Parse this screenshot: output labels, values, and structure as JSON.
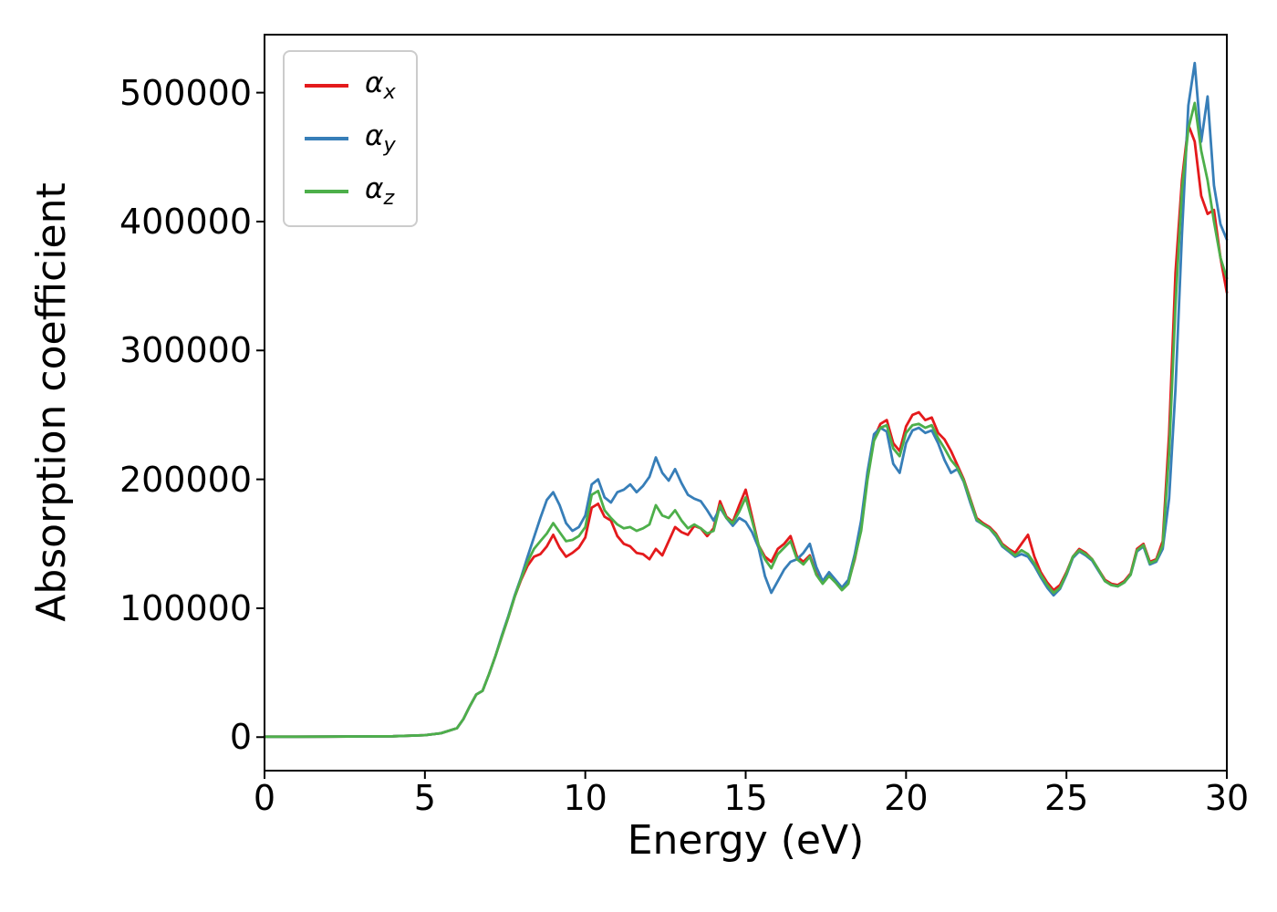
{
  "figure": {
    "xlabel": "Energy (eV)",
    "ylabel": "Absorption coefficient"
  },
  "chart_data": {
    "type": "line",
    "title": "",
    "xlabel": "Energy (eV)",
    "ylabel": "Absorption coefficient",
    "xlim": [
      0,
      30
    ],
    "ylim": [
      -26000,
      545000
    ],
    "xticks": [
      0,
      5,
      10,
      15,
      20,
      25,
      30
    ],
    "xticklabels": [
      "0",
      "5",
      "10",
      "15",
      "20",
      "25",
      "30"
    ],
    "yticks": [
      0,
      100000,
      200000,
      300000,
      400000,
      500000
    ],
    "yticklabels": [
      "0",
      "100000",
      "200000",
      "300000",
      "400000",
      "500000"
    ],
    "grid": false,
    "legend_position": "upper left",
    "x": [
      0,
      1,
      2,
      3,
      4,
      5,
      5.5,
      6,
      6.2,
      6.4,
      6.6,
      6.8,
      7,
      7.2,
      7.4,
      7.6,
      7.8,
      8,
      8.2,
      8.4,
      8.6,
      8.8,
      9,
      9.2,
      9.4,
      9.6,
      9.8,
      10,
      10.2,
      10.4,
      10.6,
      10.8,
      11,
      11.2,
      11.4,
      11.6,
      11.8,
      12,
      12.2,
      12.4,
      12.6,
      12.8,
      13,
      13.2,
      13.4,
      13.6,
      13.8,
      14,
      14.2,
      14.4,
      14.6,
      14.8,
      15,
      15.2,
      15.4,
      15.6,
      15.8,
      16,
      16.2,
      16.4,
      16.6,
      16.8,
      17,
      17.2,
      17.4,
      17.6,
      17.8,
      18,
      18.2,
      18.4,
      18.6,
      18.8,
      19,
      19.2,
      19.4,
      19.6,
      19.8,
      20,
      20.2,
      20.4,
      20.6,
      20.8,
      21,
      21.2,
      21.4,
      21.6,
      21.8,
      22,
      22.2,
      22.4,
      22.6,
      22.8,
      23,
      23.2,
      23.4,
      23.6,
      23.8,
      24,
      24.2,
      24.4,
      24.6,
      24.8,
      25,
      25.2,
      25.4,
      25.6,
      25.8,
      26,
      26.2,
      26.4,
      26.6,
      26.8,
      27,
      27.2,
      27.4,
      27.6,
      27.8,
      28,
      28.2,
      28.4,
      28.6,
      28.8,
      29,
      29.2,
      29.4,
      29.6,
      29.8,
      30
    ],
    "series": [
      {
        "name": "alpha_x",
        "label_base": "α",
        "label_sub": "x",
        "color": "#e41a1c",
        "values": [
          300,
          300,
          400,
          500,
          700,
          1500,
          3000,
          7000,
          14000,
          24000,
          33000,
          36000,
          49000,
          63000,
          78000,
          93000,
          109000,
          122000,
          133000,
          140000,
          142000,
          148000,
          157000,
          147000,
          140000,
          143000,
          147000,
          155000,
          178000,
          181000,
          171000,
          168000,
          156000,
          150000,
          148000,
          143000,
          142000,
          138000,
          146000,
          141000,
          152000,
          163000,
          159000,
          157000,
          164000,
          162000,
          156000,
          162000,
          183000,
          171000,
          167000,
          180000,
          192000,
          171000,
          149000,
          140000,
          136000,
          146000,
          150000,
          156000,
          140000,
          136000,
          141000,
          127000,
          120000,
          126000,
          121000,
          115000,
          120000,
          138000,
          162000,
          202000,
          232000,
          243000,
          246000,
          228000,
          222000,
          241000,
          250000,
          252000,
          246000,
          248000,
          236000,
          231000,
          222000,
          211000,
          200000,
          185000,
          170000,
          166000,
          163000,
          158000,
          150000,
          146000,
          143000,
          150000,
          157000,
          140000,
          128000,
          120000,
          114000,
          118000,
          128000,
          140000,
          146000,
          143000,
          138000,
          130000,
          122000,
          119000,
          118000,
          121000,
          127000,
          146000,
          150000,
          136000,
          138000,
          152000,
          235000,
          360000,
          432000,
          475000,
          462000,
          420000,
          406000,
          409000,
          372000,
          345000
        ]
      },
      {
        "name": "alpha_y",
        "label_base": "α",
        "label_sub": "y",
        "color": "#377eb8",
        "values": [
          300,
          300,
          400,
          500,
          700,
          1500,
          3000,
          7000,
          14000,
          24000,
          33000,
          36000,
          49000,
          63000,
          79000,
          94000,
          110000,
          124000,
          140000,
          155000,
          170000,
          184000,
          190000,
          180000,
          166000,
          160000,
          163000,
          172000,
          196000,
          200000,
          186000,
          182000,
          190000,
          192000,
          196000,
          190000,
          195000,
          202000,
          217000,
          205000,
          199000,
          208000,
          197000,
          188000,
          185000,
          183000,
          176000,
          168000,
          178000,
          170000,
          164000,
          170000,
          167000,
          159000,
          147000,
          125000,
          112000,
          121000,
          130000,
          136000,
          138000,
          143000,
          150000,
          132000,
          121000,
          128000,
          122000,
          116000,
          122000,
          142000,
          168000,
          206000,
          235000,
          240000,
          237000,
          212000,
          205000,
          228000,
          238000,
          240000,
          236000,
          238000,
          228000,
          215000,
          205000,
          208000,
          198000,
          182000,
          168000,
          165000,
          162000,
          156000,
          148000,
          144000,
          140000,
          142000,
          140000,
          133000,
          124000,
          116000,
          110000,
          115000,
          126000,
          139000,
          144000,
          141000,
          137000,
          129000,
          121000,
          118000,
          117000,
          120000,
          126000,
          144000,
          148000,
          134000,
          136000,
          146000,
          185000,
          270000,
          390000,
          490000,
          523000,
          462000,
          497000,
          428000,
          398000,
          386000
        ]
      },
      {
        "name": "alpha_z",
        "label_base": "α",
        "label_sub": "z",
        "color": "#4daf4a",
        "values": [
          300,
          300,
          400,
          500,
          700,
          1500,
          3000,
          7000,
          14000,
          24000,
          33000,
          36000,
          49000,
          63000,
          78000,
          93000,
          109000,
          123000,
          136000,
          146000,
          152000,
          158000,
          166000,
          159000,
          152000,
          153000,
          156000,
          163000,
          188000,
          191000,
          176000,
          170000,
          165000,
          162000,
          163000,
          160000,
          162000,
          165000,
          180000,
          172000,
          170000,
          176000,
          168000,
          162000,
          165000,
          162000,
          158000,
          160000,
          180000,
          170000,
          166000,
          175000,
          186000,
          168000,
          149000,
          138000,
          131000,
          142000,
          147000,
          152000,
          138000,
          134000,
          140000,
          126000,
          119000,
          125000,
          120000,
          114000,
          119000,
          139000,
          160000,
          200000,
          230000,
          240000,
          242000,
          224000,
          218000,
          236000,
          242000,
          243000,
          240000,
          242000,
          232000,
          224000,
          215000,
          209000,
          199000,
          184000,
          169000,
          165000,
          162000,
          157000,
          149000,
          145000,
          141000,
          145000,
          142000,
          135000,
          126000,
          118000,
          112000,
          116000,
          127000,
          140000,
          145000,
          142000,
          138000,
          130000,
          121000,
          118000,
          117000,
          120000,
          126000,
          145000,
          149000,
          135000,
          137000,
          149000,
          220000,
          335000,
          425000,
          472000,
          492000,
          455000,
          432000,
          400000,
          372000,
          356000
        ]
      }
    ]
  }
}
